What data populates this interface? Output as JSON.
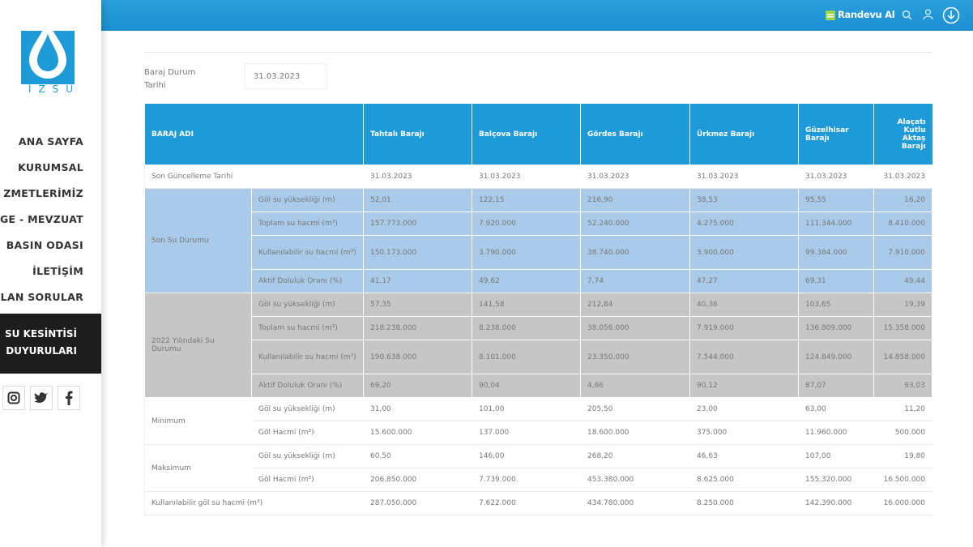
{
  "header": {
    "action": "Randevu Al"
  },
  "sidebar": {
    "logo_text": "İZSU",
    "menu": [
      "ANA SAYFA",
      "KURUMSAL",
      "ZMETLERİMİZ",
      "GE - MEVZUAT",
      "BASIN ODASI",
      "İLETİŞİM",
      "LAN SORULAR"
    ],
    "highlight": [
      "SU KESİNTİSİ",
      "DUYURULARI"
    ]
  },
  "form": {
    "label": "Baraj Durum Tarihi",
    "date": "31.03.2023"
  },
  "table": {
    "header_color": "#1f9ad8",
    "corner": "BARAJ ADI",
    "dams": [
      "Tahtalı Barajı",
      "Balçova Barajı",
      "Gördes Barajı",
      "Ürkmez Barajı",
      "Güzelhisar Barajı",
      "Alaçatı Kutlu Aktaş Barajı"
    ],
    "update_row": {
      "label": "Son Güncelleme Tarihi",
      "values": [
        "31.03.2023",
        "31.03.2023",
        "31.03.2023",
        "31.03.2023",
        "31.03.2023",
        "31.03.2023"
      ]
    },
    "groups": [
      {
        "name": "Son Su Durumu",
        "color": "#a9cbe9",
        "rows": [
          {
            "label": "Göl su yüksekliği (m)",
            "values": [
              "52,01",
              "122,15",
              "216,90",
              "38,53",
              "95,55",
              "16,20"
            ]
          },
          {
            "label": "Toplam su hacmi (m³)",
            "values": [
              "157.773.000",
              "7.920.000",
              "52.240.000",
              "4.275.000",
              "111.344.000",
              "8.410.000"
            ]
          },
          {
            "label": "Kullanılabilir su hacmi (m³)",
            "values": [
              "150.173.000",
              "3.790.000",
              "38.740.000",
              "3.900.000",
              "99.384.000",
              "7.910.000"
            ]
          },
          {
            "label": "Aktif Doluluk Oranı (%)",
            "values": [
              "41,17",
              "49,62",
              "7,74",
              "47,27",
              "69,31",
              "49,44"
            ]
          }
        ]
      },
      {
        "name": "2022 Yılındaki Su Durumu",
        "color": "#c6c6c6",
        "rows": [
          {
            "label": "Göl su yüksekliği (m)",
            "values": [
              "57,35",
              "141,58",
              "212,84",
              "40,36",
              "103,65",
              "19,39"
            ]
          },
          {
            "label": "Toplam su hacmi (m³)",
            "values": [
              "218.238.000",
              "8.238.000",
              "38.056.000",
              "7.919.000",
              "136.809.000",
              "15.358.000"
            ]
          },
          {
            "label": "Kullanılabilir su hacmi (m³)",
            "values": [
              "190.638.000",
              "8.101.000",
              "23.350.000",
              "7.544.000",
              "124.849.000",
              "14.858.000"
            ]
          },
          {
            "label": "Aktif Doluluk Oranı (%)",
            "values": [
              "69,20",
              "90,04",
              "4,66",
              "90,12",
              "87,07",
              "93,03"
            ]
          }
        ]
      },
      {
        "name": "Minimum",
        "color": "#ffffff",
        "rows": [
          {
            "label": "Göl su yüksekliği (m)",
            "values": [
              "31,00",
              "101,00",
              "205,50",
              "23,00",
              "63,00",
              "11,20"
            ]
          },
          {
            "label": "Göl Hacmi (m³)",
            "values": [
              "15.600.000",
              "137.000",
              "18.600.000",
              "375.000",
              "11.960.000",
              "500.000"
            ]
          }
        ]
      },
      {
        "name": "Maksimum",
        "color": "#ffffff",
        "rows": [
          {
            "label": "Göl su yüksekliği (m)",
            "values": [
              "60,50",
              "146,00",
              "268,20",
              "46,63",
              "107,00",
              "19,80"
            ]
          },
          {
            "label": "Göl Hacmi (m³)",
            "values": [
              "206.850.000",
              "7.739.000",
              "453.380.000",
              "8.625.000",
              "155.320.000",
              "16.500.000"
            ]
          }
        ]
      }
    ],
    "footer_row": {
      "label": "Kullanılabilir göl su hacmi (m³)",
      "values": [
        "287.050.000",
        "7.622.000",
        "434.780.000",
        "8.250.000",
        "142.390.000",
        "16.000.000"
      ]
    }
  }
}
